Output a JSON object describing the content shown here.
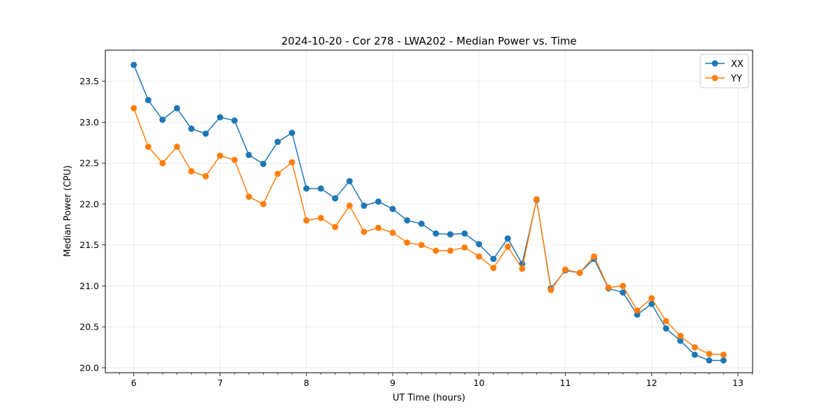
{
  "chart_data": {
    "type": "line",
    "title": "2024-10-20 - Cor 278 - LWA202 - Median Power vs. Time",
    "xlabel": "UT Time (hours)",
    "ylabel": "Median Power (CPU)",
    "xlim": [
      5.67,
      13.17
    ],
    "ylim": [
      19.94,
      23.88
    ],
    "xticks": [
      6,
      7,
      8,
      9,
      10,
      11,
      12,
      13
    ],
    "yticks": [
      20.0,
      20.5,
      21.0,
      21.5,
      22.0,
      22.5,
      23.0,
      23.5
    ],
    "grid": true,
    "legend_position": "top-right",
    "x": [
      6.0,
      6.167,
      6.333,
      6.5,
      6.667,
      6.833,
      7.0,
      7.167,
      7.333,
      7.5,
      7.667,
      7.833,
      8.0,
      8.167,
      8.333,
      8.5,
      8.667,
      8.833,
      9.0,
      9.167,
      9.333,
      9.5,
      9.667,
      9.833,
      10.0,
      10.167,
      10.333,
      10.5,
      10.667,
      10.833,
      11.0,
      11.167,
      11.333,
      11.5,
      11.667,
      11.833,
      12.0,
      12.167,
      12.333,
      12.5,
      12.667,
      12.833
    ],
    "series": [
      {
        "name": "XX",
        "color": "#1f77b4",
        "values": [
          23.7,
          23.27,
          23.03,
          23.17,
          22.92,
          22.86,
          23.06,
          23.02,
          22.6,
          22.49,
          22.76,
          22.87,
          22.19,
          22.19,
          22.07,
          22.28,
          21.98,
          22.03,
          21.94,
          21.8,
          21.76,
          21.64,
          21.63,
          21.64,
          21.51,
          21.33,
          21.58,
          21.27,
          22.05,
          20.97,
          21.19,
          21.16,
          21.33,
          20.97,
          20.92,
          20.65,
          20.78,
          20.48,
          20.33,
          20.16,
          20.09,
          20.09
        ]
      },
      {
        "name": "YY",
        "color": "#ff7f0e",
        "values": [
          23.17,
          22.7,
          22.5,
          22.7,
          22.4,
          22.34,
          22.59,
          22.54,
          22.09,
          22.0,
          22.37,
          22.51,
          21.8,
          21.83,
          21.72,
          21.98,
          21.66,
          21.71,
          21.65,
          21.53,
          21.5,
          21.43,
          21.43,
          21.47,
          21.36,
          21.22,
          21.48,
          21.21,
          22.06,
          20.95,
          21.2,
          21.16,
          21.36,
          20.98,
          21.0,
          20.7,
          20.85,
          20.57,
          20.39,
          20.25,
          20.17,
          20.16
        ]
      }
    ]
  }
}
